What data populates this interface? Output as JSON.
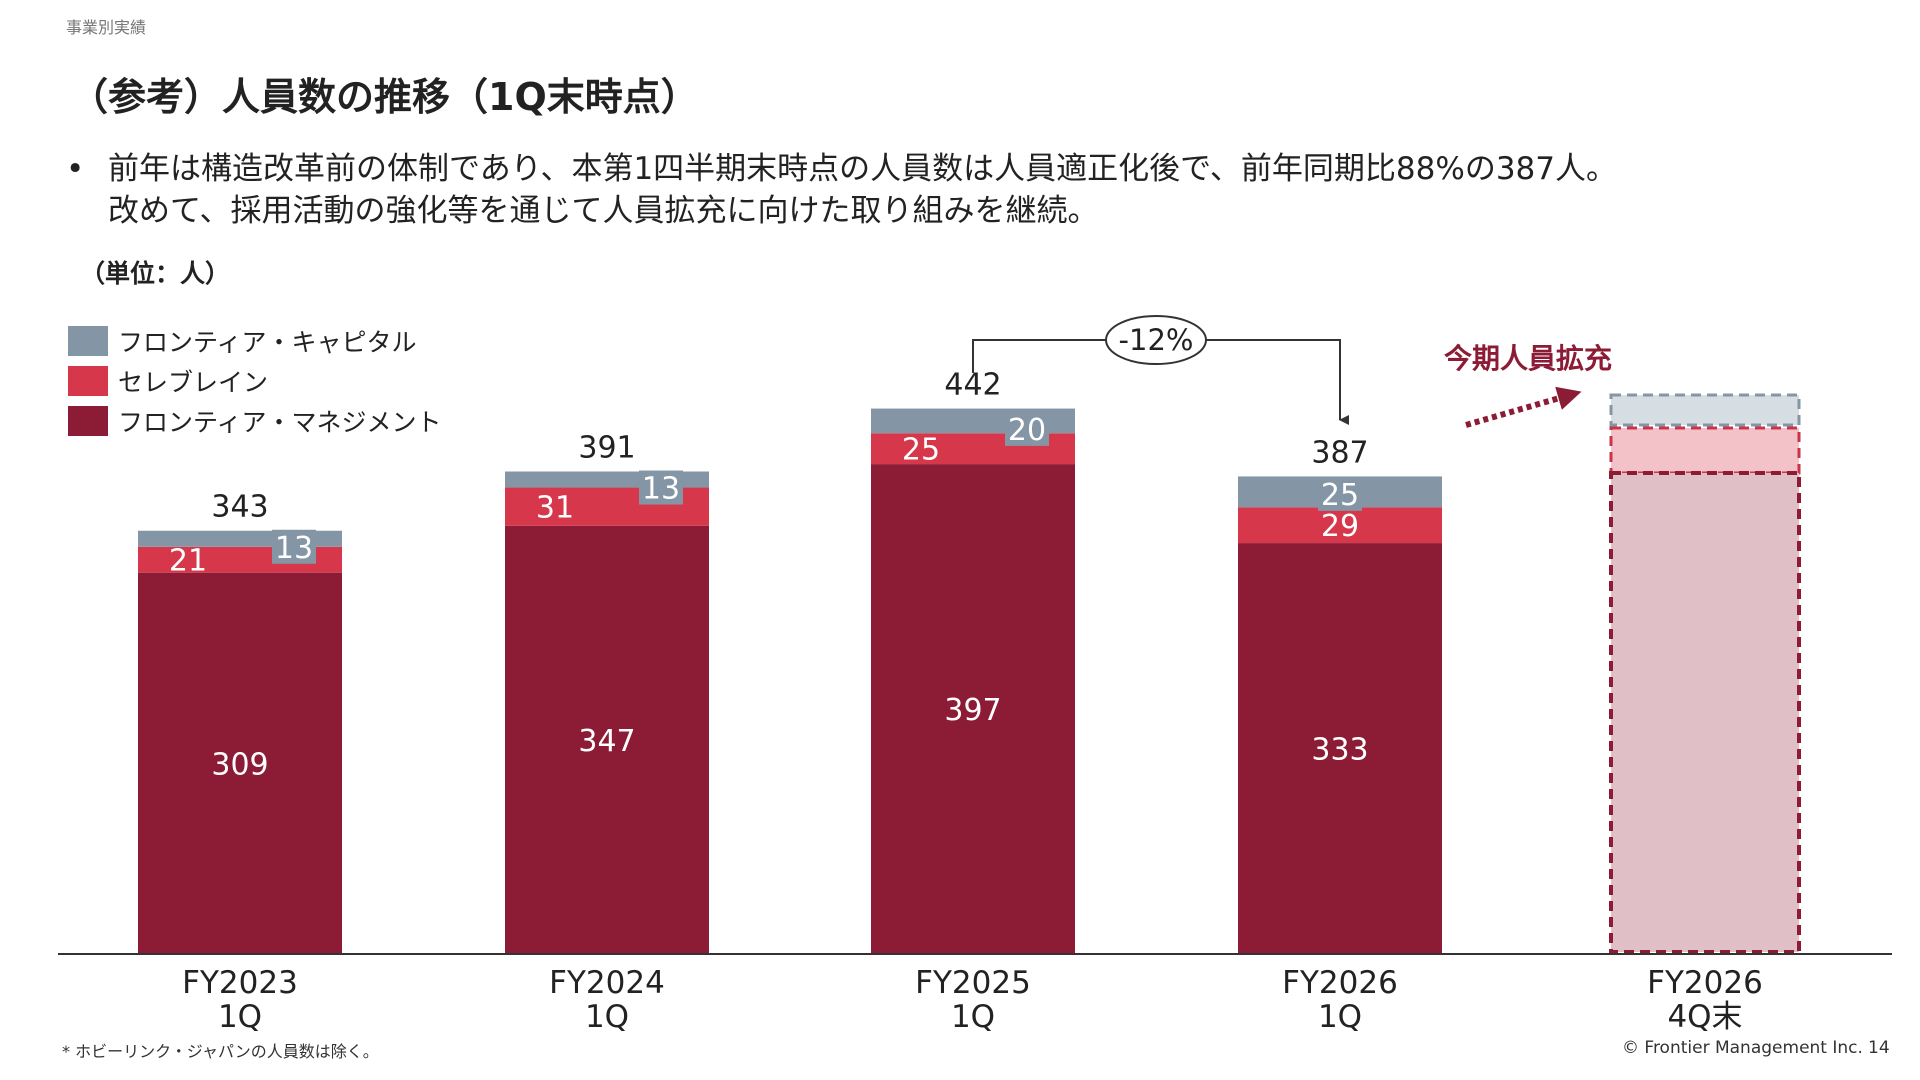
{
  "section": "事業別実績",
  "title": "（参考）人員数の推移（1Q末時点）",
  "bullet_marker": "•",
  "bullets": [
    "前年は構造改革前の体制であり、本第1四半期末時点の人員数は人員適正化後で、前年同期比88%の387人。",
    "改めて、採用活動の強化等を通じて人員拡充に向けた取り組みを継続。"
  ],
  "unit_label": "（単位：人）",
  "footnote": "* ホビーリンク・ジャパンの人員数は除く。",
  "copyright": "© Frontier Management Inc.",
  "page_number": "14",
  "chart_data": {
    "type": "bar",
    "stacked": true,
    "categories": [
      "FY2023\n1Q",
      "FY2024\n1Q",
      "FY2025\n1Q",
      "FY2026\n1Q",
      "FY2026\n4Q末"
    ],
    "series": [
      {
        "name": "フロンティア・マネジメント",
        "color": "#8c1b35",
        "values": [
          309,
          347,
          397,
          333,
          null
        ]
      },
      {
        "name": "セレブレイン",
        "color": "#d6374a",
        "values": [
          21,
          31,
          25,
          29,
          null
        ]
      },
      {
        "name": "フロンティア・キャピタル",
        "color": "#8496a5",
        "values": [
          13,
          13,
          20,
          25,
          null
        ]
      }
    ],
    "totals": [
      343,
      391,
      442,
      387,
      null
    ],
    "legend_order": [
      "フロンティア・キャピタル",
      "セレブレイン",
      "フロンティア・マネジメント"
    ],
    "legend_position": "top-left",
    "ylim": [
      0,
      500
    ],
    "grid": false,
    "annotations": {
      "change_label": "-12%",
      "change_from": "FY2025\n1Q",
      "change_to": "FY2026\n1Q",
      "target_label": "今期人員拡充",
      "target_category": "FY2026\n4Q末",
      "target_style": "dashed placeholder"
    },
    "colors": {
      "management": "#8c1b35",
      "celebrain": "#d6374a",
      "capital": "#8496a5",
      "axis": "#333333",
      "target_border": "#8c1b35",
      "target_top_border": "#8496a5"
    }
  }
}
